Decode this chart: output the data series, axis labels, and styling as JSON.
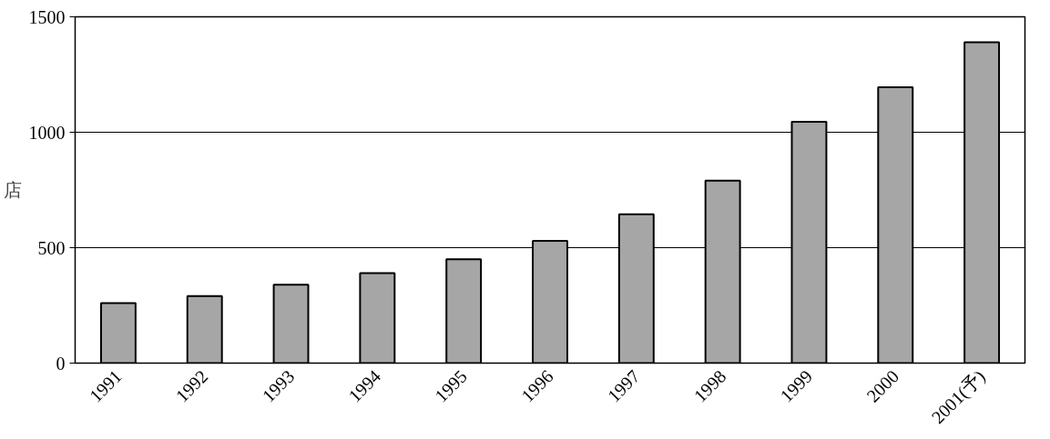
{
  "chart_data": {
    "type": "bar",
    "ylabel": "店",
    "categories": [
      "1991",
      "1992",
      "1993",
      "1994",
      "1995",
      "1996",
      "1997",
      "1998",
      "1999",
      "2000",
      "2001(予)"
    ],
    "values": [
      260,
      290,
      340,
      390,
      450,
      530,
      645,
      790,
      1045,
      1195,
      1390
    ],
    "color": "#a6a6a6",
    "ylim": [
      0,
      1500
    ],
    "yticks": [
      0,
      500,
      1000,
      1500
    ],
    "grid": "y"
  }
}
